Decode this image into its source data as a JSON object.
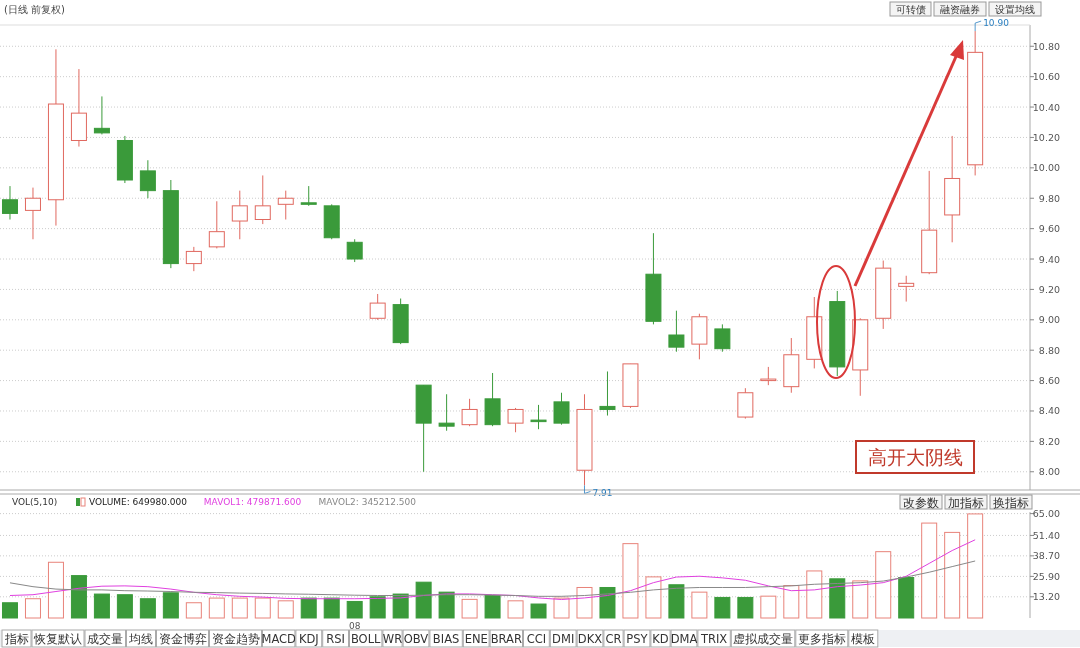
{
  "chart_data": [
    {
      "type": "candlestick",
      "title": "(日线 前复权)",
      "categories": [
        null,
        null,
        null,
        null,
        null,
        null,
        null,
        null,
        null,
        null,
        null,
        null,
        null,
        null,
        null,
        null,
        null,
        null,
        null,
        null,
        null,
        null,
        null,
        null,
        null,
        null,
        null,
        null,
        null,
        null,
        null,
        null,
        null,
        null,
        null,
        null,
        null,
        null,
        null,
        null,
        null,
        null,
        null
      ],
      "ohlc": [
        [
          9.79,
          9.88,
          9.66,
          9.7
        ],
        [
          9.72,
          9.87,
          9.53,
          9.8
        ],
        [
          9.79,
          10.78,
          9.62,
          10.42
        ],
        [
          10.18,
          10.65,
          10.14,
          10.36
        ],
        [
          10.26,
          10.47,
          10.22,
          10.23
        ],
        [
          10.18,
          10.21,
          9.9,
          9.92
        ],
        [
          9.98,
          10.05,
          9.8,
          9.85
        ],
        [
          9.85,
          9.92,
          9.34,
          9.37
        ],
        [
          9.37,
          9.48,
          9.32,
          9.45
        ],
        [
          9.48,
          9.78,
          9.47,
          9.58
        ],
        [
          9.65,
          9.85,
          9.53,
          9.75
        ],
        [
          9.66,
          9.95,
          9.63,
          9.75
        ],
        [
          9.76,
          9.85,
          9.66,
          9.8
        ],
        [
          9.77,
          9.88,
          9.75,
          9.76
        ],
        [
          9.75,
          9.76,
          9.53,
          9.54
        ],
        [
          9.51,
          9.53,
          9.38,
          9.4
        ],
        [
          9.01,
          9.17,
          9.0,
          9.11
        ],
        [
          9.1,
          9.14,
          8.84,
          8.85
        ],
        [
          8.57,
          8.57,
          8.0,
          8.32
        ],
        [
          8.32,
          8.51,
          8.27,
          8.3
        ],
        [
          8.31,
          8.48,
          8.3,
          8.41
        ],
        [
          8.48,
          8.65,
          8.3,
          8.31
        ],
        [
          8.32,
          8.42,
          8.26,
          8.41
        ],
        [
          8.34,
          8.44,
          8.28,
          8.33
        ],
        [
          8.46,
          8.52,
          8.31,
          8.32
        ],
        [
          8.01,
          8.51,
          7.91,
          8.41
        ],
        [
          8.43,
          8.66,
          8.37,
          8.41
        ],
        [
          8.43,
          8.71,
          8.42,
          8.71
        ],
        [
          9.3,
          9.57,
          8.97,
          8.99
        ],
        [
          8.9,
          9.06,
          8.79,
          8.82
        ],
        [
          8.84,
          9.04,
          8.74,
          9.02
        ],
        [
          8.94,
          8.97,
          8.79,
          8.81
        ],
        [
          8.36,
          8.55,
          8.35,
          8.52
        ],
        [
          8.6,
          8.69,
          8.57,
          8.61
        ],
        [
          8.56,
          8.88,
          8.52,
          8.77
        ],
        [
          8.74,
          9.15,
          8.68,
          9.02
        ],
        [
          9.12,
          9.19,
          8.63,
          8.69
        ],
        [
          8.67,
          9.01,
          8.5,
          9.0
        ],
        [
          9.01,
          9.39,
          8.94,
          9.34
        ],
        [
          9.22,
          9.29,
          9.12,
          9.24
        ],
        [
          9.31,
          9.98,
          9.3,
          9.59
        ],
        [
          9.69,
          10.21,
          9.51,
          9.93
        ],
        [
          10.02,
          10.9,
          9.95,
          10.76
        ]
      ],
      "colors": [
        "#3a9a3a",
        "#e0685f",
        "#e0685f",
        "#e0685f",
        "#3a9a3a",
        "#3a9a3a",
        "#3a9a3a",
        "#3a9a3a",
        "#e0685f",
        "#e0685f",
        "#e0685f",
        "#e0685f",
        "#e0685f",
        "#3a9a3a",
        "#3a9a3a",
        "#3a9a3a",
        "#e0685f",
        "#3a9a3a",
        "#3a9a3a",
        "#3a9a3a",
        "#e0685f",
        "#3a9a3a",
        "#e0685f",
        "#3a9a3a",
        "#3a9a3a",
        "#e0685f",
        "#3a9a3a",
        "#e0685f",
        "#3a9a3a",
        "#3a9a3a",
        "#e0685f",
        "#3a9a3a",
        "#e0685f",
        "#e0685f",
        "#e0685f",
        "#e0685f",
        "#3a9a3a",
        "#e0685f",
        "#e0685f",
        "#e0685f",
        "#e0685f",
        "#e0685f",
        "#e0685f"
      ],
      "ylim": [
        7.88,
        10.94
      ],
      "yticks": [
        {
          "value": 8,
          "label": "8.00"
        },
        {
          "value": 8.2,
          "label": "8.20"
        },
        {
          "value": 8.4,
          "label": "8.40"
        },
        {
          "value": 8.6,
          "label": "8.60"
        },
        {
          "value": 8.8,
          "label": "8.80"
        },
        {
          "value": 9,
          "label": "9.00"
        },
        {
          "value": 9.2,
          "label": "9.20"
        },
        {
          "value": 9.4,
          "label": "9.40"
        },
        {
          "value": 9.6,
          "label": "9.60"
        },
        {
          "value": 9.8,
          "label": "9.80"
        },
        {
          "value": 10,
          "label": "10.00"
        },
        {
          "value": 10.2,
          "label": "10.20"
        },
        {
          "value": 10.4,
          "label": "10.40"
        },
        {
          "value": 10.6,
          "label": "10.60"
        },
        {
          "value": 10.8,
          "label": "10.80"
        }
      ],
      "grid": "y",
      "tick_labels": "y",
      "annotations": [
        "7.91",
        "10.90",
        "高开大阴线",
        "可转债",
        "融资融券",
        "设置均线"
      ]
    },
    {
      "type": "bar",
      "title": "VOL(5,10)",
      "categories": [
        null,
        null,
        null,
        null,
        null,
        null,
        null,
        null,
        null,
        null,
        null,
        null,
        null,
        null,
        null,
        "08",
        null,
        null,
        null,
        null,
        null,
        null,
        null,
        null,
        null,
        null,
        null,
        null,
        null,
        null,
        null,
        null,
        null,
        null,
        null,
        null,
        null,
        null,
        null,
        null,
        null,
        null,
        null
      ],
      "series": [
        {
          "name": "VOLUME: 649980.000",
          "color": "#222222",
          "values": [
            9.5,
            12.0,
            34.7,
            26.4,
            14.9,
            14.5,
            12.0,
            15.7,
            9.5,
            12.4,
            12.4,
            12.4,
            10.7,
            12.4,
            12.4,
            10.3,
            13.2,
            14.9,
            22.3,
            16.1,
            11.6,
            14.0,
            10.7,
            8.7,
            12.4,
            19.0,
            19.0,
            46.3,
            25.6,
            20.7,
            16.1,
            12.8,
            12.8,
            13.6,
            20.2,
            29.3,
            24.4,
            23.1,
            41.3,
            25.2,
            59.1,
            53.3,
            64.8
          ],
          "colors": [
            "#3a9a3a",
            "#e8837a",
            "#e8837a",
            "#3a9a3a",
            "#3a9a3a",
            "#3a9a3a",
            "#3a9a3a",
            "#3a9a3a",
            "#e8837a",
            "#e8837a",
            "#e8837a",
            "#e8837a",
            "#e8837a",
            "#3a9a3a",
            "#3a9a3a",
            "#3a9a3a",
            "#3a9a3a",
            "#3a9a3a",
            "#3a9a3a",
            "#3a9a3a",
            "#e8837a",
            "#3a9a3a",
            "#e8837a",
            "#3a9a3a",
            "#e8837a",
            "#e8837a",
            "#3a9a3a",
            "#e8837a",
            "#e8837a",
            "#3a9a3a",
            "#e8837a",
            "#3a9a3a",
            "#3a9a3a",
            "#e8837a",
            "#e8837a",
            "#e8837a",
            "#3a9a3a",
            "#e8837a",
            "#e8837a",
            "#3a9a3a",
            "#e8837a",
            "#e8837a",
            "#e8837a"
          ]
        },
        {
          "name": "MAVOL1: 479871.600",
          "type": "line",
          "color": "#e040e0",
          "values": [
            14.0,
            14.5,
            16.5,
            18.5,
            19.8,
            20.0,
            19.5,
            18.0,
            16.0,
            14.5,
            13.5,
            13.0,
            12.2,
            12.0,
            12.0,
            12.0,
            12.2,
            12.5,
            14.0,
            15.0,
            15.0,
            14.5,
            14.0,
            12.5,
            11.5,
            12.5,
            14.0,
            17.0,
            22.0,
            25.5,
            26.0,
            25.0,
            23.5,
            20.0,
            17.0,
            17.5,
            19.5,
            20.5,
            22.0,
            26.0,
            34.0,
            42.0,
            48.7
          ]
        },
        {
          "name": "MAVOL2: 345212.500",
          "type": "line",
          "color": "#888888",
          "values": [
            21.9,
            19.5,
            18.0,
            17.5,
            17.5,
            17.0,
            16.8,
            16.5,
            16.0,
            15.8,
            15.5,
            15.3,
            15.0,
            14.8,
            14.5,
            14.2,
            14.0,
            14.0,
            14.2,
            14.5,
            14.5,
            14.3,
            14.0,
            13.5,
            13.5,
            14.0,
            15.0,
            16.0,
            17.5,
            18.5,
            19.0,
            19.0,
            19.0,
            19.5,
            20.0,
            21.0,
            21.5,
            22.0,
            23.0,
            25.5,
            28.5,
            32.0,
            35.5
          ]
        }
      ],
      "ylim": [
        0,
        66
      ],
      "yticks": [
        {
          "value": 13.2,
          "label": "13.20"
        },
        {
          "value": 25.9,
          "label": "25.90"
        },
        {
          "value": 38.7,
          "label": "38.70"
        },
        {
          "value": 51.4,
          "label": "51.40"
        },
        {
          "value": 65,
          "label": "65.00"
        }
      ],
      "grid": "y",
      "legend": "top left",
      "annotations": [
        "改参数",
        "加指标",
        "换指标"
      ]
    },
    {
      "type": "other",
      "annotations": [
        "指标",
        "恢复默认",
        "成交量",
        "均线",
        "资金博弈",
        "资金趋势",
        "MACD",
        "KDJ",
        "RSI",
        "BOLL",
        "WR",
        "OBV",
        "BIAS",
        "ENE",
        "BRAR",
        "CCI",
        "DMI",
        "DKX",
        "CR",
        "PSY",
        "KD",
        "DMA",
        "TRIX",
        "虚拟成交量",
        "更多指标",
        "模板"
      ]
    }
  ]
}
